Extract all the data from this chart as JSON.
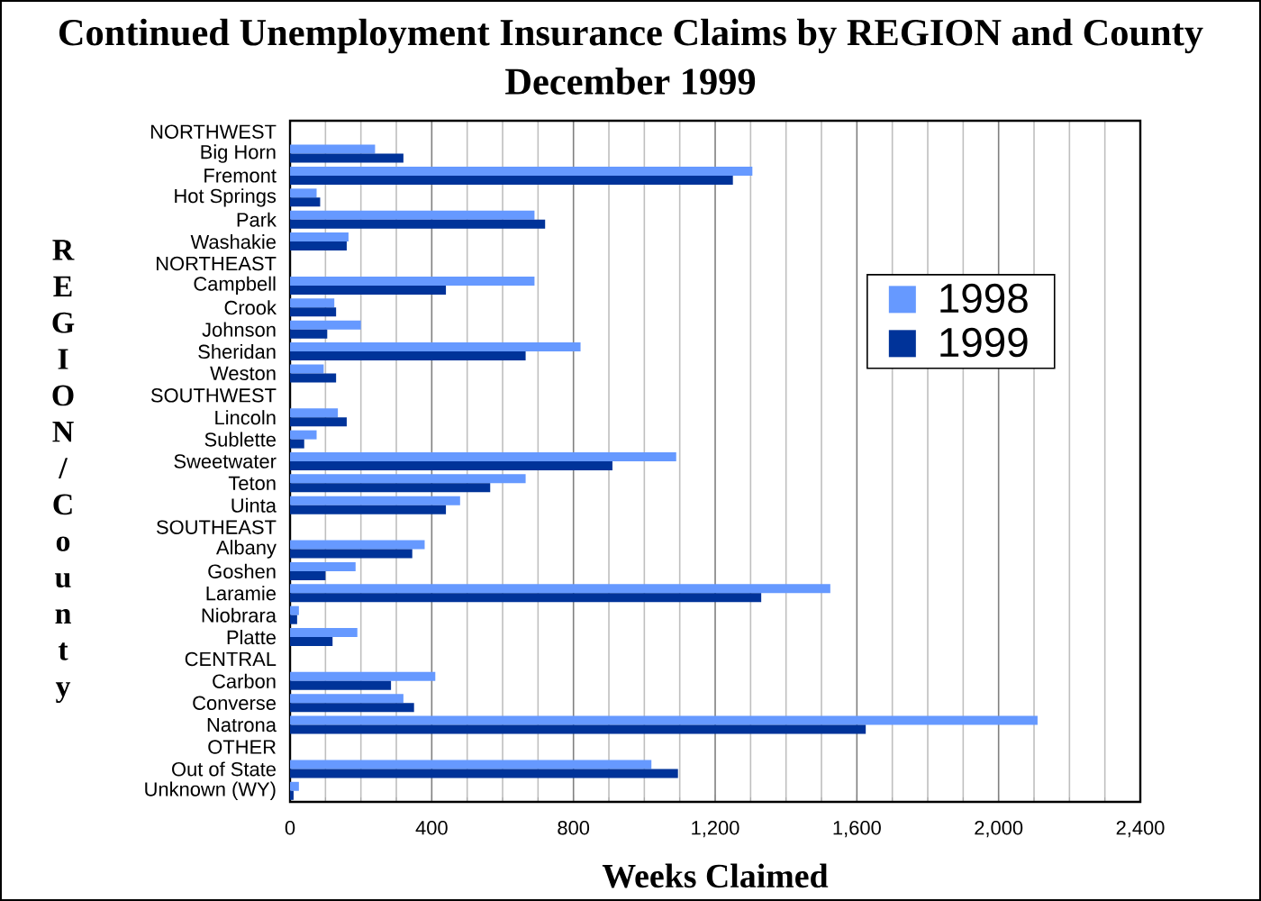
{
  "chart_data": {
    "type": "bar",
    "orientation": "horizontal",
    "title": "Continued Unemployment Insurance Claims by REGION and County",
    "subtitle": "December 1999",
    "xlabel": "Weeks Claimed",
    "ylabel": "REGION/County",
    "categories": [
      "NORTHWEST",
      "Big Horn",
      "Fremont",
      "Hot Springs",
      "Park",
      "Washakie",
      "NORTHEAST",
      "Campbell",
      "Crook",
      "Johnson",
      "Sheridan",
      "Weston",
      "SOUTHWEST",
      "Lincoln",
      "Sublette",
      "Sweetwater",
      "Teton",
      "Uinta",
      "SOUTHEAST",
      "Albany",
      "Goshen",
      "Laramie",
      "Niobrara",
      "Platte",
      "CENTRAL",
      "Carbon",
      "Converse",
      "Natrona",
      "OTHER",
      "Out of State",
      "Unknown (WY)"
    ],
    "series": [
      {
        "name": "1998",
        "color": "#6699ff",
        "values": [
          null,
          240,
          1305,
          75,
          690,
          165,
          null,
          690,
          125,
          200,
          820,
          95,
          null,
          135,
          75,
          1090,
          665,
          480,
          null,
          380,
          185,
          1525,
          25,
          190,
          null,
          410,
          320,
          2110,
          null,
          1020,
          25
        ]
      },
      {
        "name": "1999",
        "color": "#003399",
        "values": [
          null,
          320,
          1250,
          85,
          720,
          160,
          null,
          440,
          130,
          105,
          665,
          130,
          null,
          160,
          40,
          910,
          565,
          440,
          null,
          345,
          100,
          1330,
          20,
          120,
          null,
          285,
          350,
          1625,
          null,
          1095,
          10
        ]
      }
    ],
    "xlim": [
      0,
      2400
    ],
    "xticks": [
      0,
      400,
      800,
      {
        "value": 1200,
        "label": "1,200"
      },
      {
        "value": 1600,
        "label": "1,600"
      },
      {
        "value": 2000,
        "label": "2,000"
      },
      {
        "value": 2400,
        "label": "2,400"
      }
    ],
    "grid": "x",
    "legend": "right"
  }
}
